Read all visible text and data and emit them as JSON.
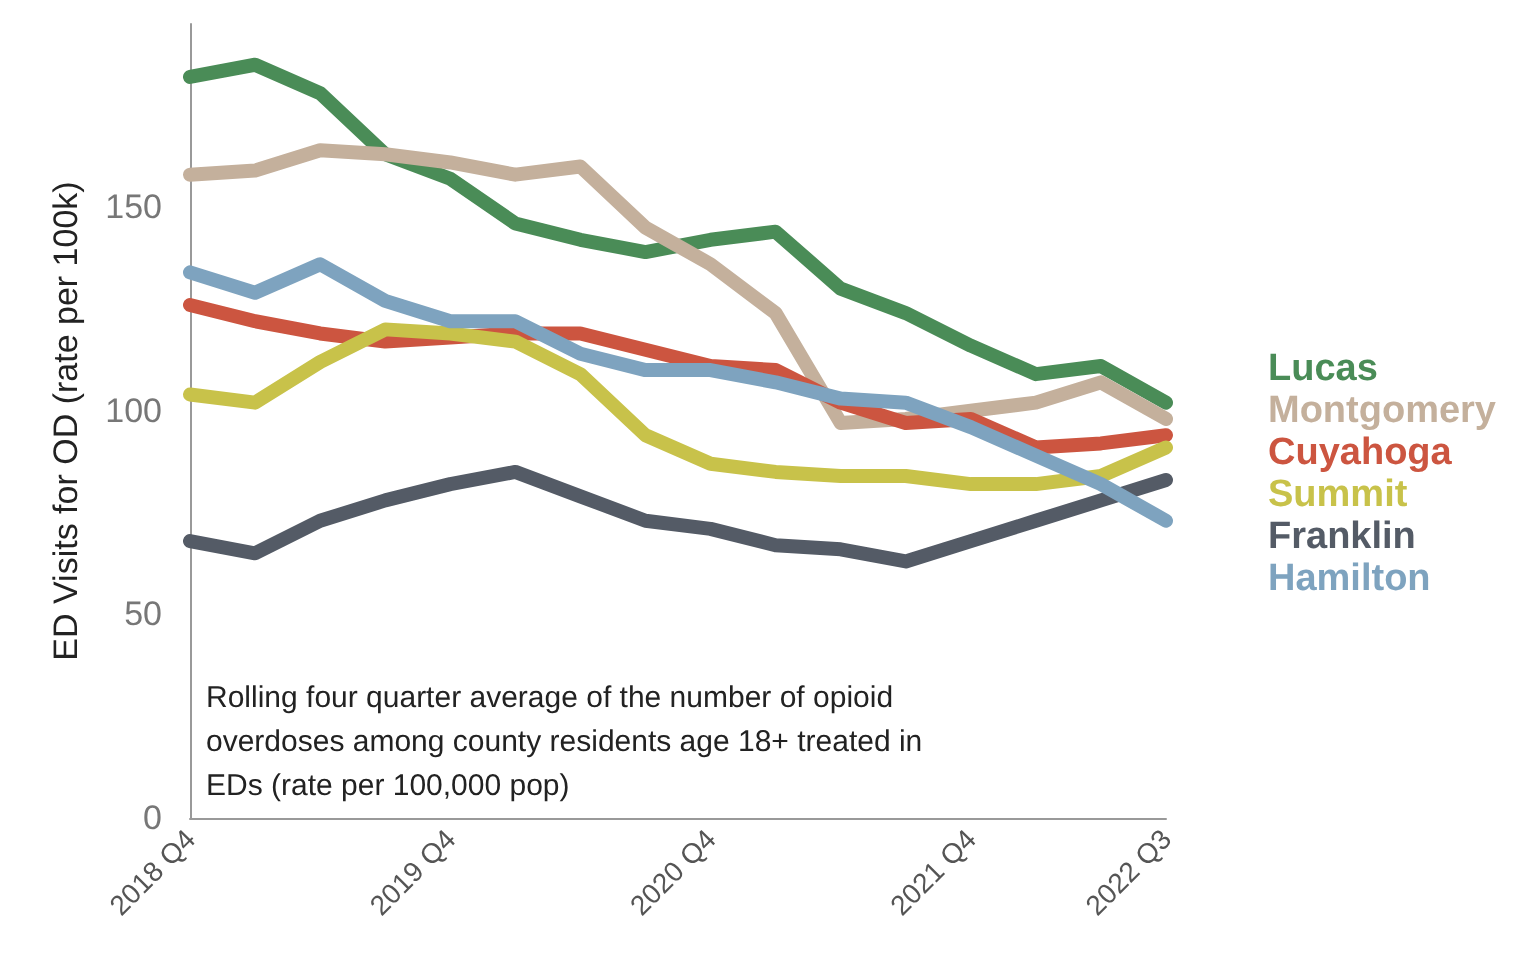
{
  "chart_data": {
    "type": "line",
    "ylabel": "ED Visits for OD (rate per 100k)",
    "categories": [
      "2018 Q4",
      null,
      null,
      null,
      "2019 Q4",
      null,
      null,
      null,
      "2020 Q4",
      null,
      null,
      null,
      "2021 Q4",
      null,
      null,
      "2022 Q3"
    ],
    "series": [
      {
        "name": "Lucas",
        "color": "#4a8c57",
        "values": [
          182,
          185,
          178,
          163,
          157,
          146,
          142,
          139,
          142,
          144,
          130,
          124,
          116,
          109,
          111,
          102
        ]
      },
      {
        "name": "Montgomery",
        "color": "#c4b09c",
        "values": [
          158,
          159,
          164,
          163,
          161,
          158,
          160,
          145,
          136,
          124,
          97,
          98,
          100,
          102,
          107,
          98
        ]
      },
      {
        "name": "Cuyahoga",
        "color": "#cc5540",
        "values": [
          126,
          122,
          119,
          117,
          118,
          119,
          119,
          115,
          111,
          110,
          102,
          97,
          98,
          91,
          92,
          94
        ]
      },
      {
        "name": "Summit",
        "color": "#c8c24a",
        "values": [
          104,
          102,
          112,
          120,
          119,
          117,
          109,
          94,
          87,
          85,
          84,
          84,
          82,
          82,
          84,
          91
        ]
      },
      {
        "name": "Franklin",
        "color": "#545b66",
        "values": [
          68,
          65,
          73,
          78,
          82,
          85,
          79,
          73,
          71,
          67,
          66,
          63,
          68,
          73,
          78,
          83
        ]
      },
      {
        "name": "Hamilton",
        "color": "#7ea3bf",
        "values": [
          134,
          129,
          136,
          127,
          122,
          122,
          114,
          110,
          110,
          107,
          103,
          102,
          96,
          89,
          82,
          73
        ]
      }
    ],
    "ylim": [
      0,
      195
    ],
    "yticks": [
      0,
      50,
      100,
      150
    ],
    "grid": false,
    "legend": "right",
    "marker": "none",
    "line_style": "solid",
    "annotations": [
      "Rolling four quarter average of the number of opioid overdoses among county residents age 18+ treated in EDs (rate per 100,000 pop)"
    ]
  }
}
